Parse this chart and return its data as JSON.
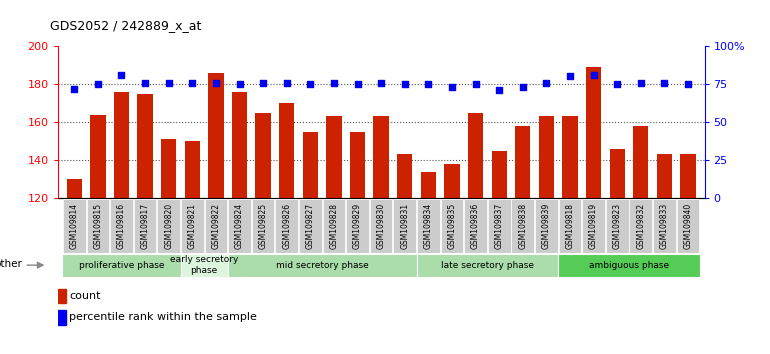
{
  "title": "GDS2052 / 242889_x_at",
  "samples": [
    "GSM109814",
    "GSM109815",
    "GSM109816",
    "GSM109817",
    "GSM109820",
    "GSM109821",
    "GSM109822",
    "GSM109824",
    "GSM109825",
    "GSM109826",
    "GSM109827",
    "GSM109828",
    "GSM109829",
    "GSM109830",
    "GSM109831",
    "GSM109834",
    "GSM109835",
    "GSM109836",
    "GSM109837",
    "GSM109838",
    "GSM109839",
    "GSM109818",
    "GSM109819",
    "GSM109823",
    "GSM109832",
    "GSM109833",
    "GSM109840"
  ],
  "counts": [
    130,
    164,
    176,
    175,
    151,
    150,
    186,
    176,
    165,
    170,
    155,
    163,
    155,
    163,
    143,
    134,
    138,
    165,
    145,
    158,
    163,
    163,
    189,
    146,
    158,
    143,
    143
  ],
  "percentiles": [
    72,
    75,
    81,
    76,
    76,
    76,
    76,
    75,
    76,
    76,
    75,
    76,
    75,
    76,
    75,
    75,
    73,
    75,
    71,
    73,
    76,
    80,
    81,
    75,
    76,
    76,
    75
  ],
  "ylim_left": [
    120,
    200
  ],
  "ylim_right": [
    0,
    100
  ],
  "yticks_left": [
    120,
    140,
    160,
    180,
    200
  ],
  "yticks_right": [
    0,
    25,
    50,
    75,
    100
  ],
  "ytick_labels_right": [
    "0",
    "25",
    "50",
    "75",
    "100%"
  ],
  "phases": [
    {
      "label": "proliferative phase",
      "start": 0,
      "end": 5,
      "color": "#aaddaa"
    },
    {
      "label": "early secretory\nphase",
      "start": 5,
      "end": 7,
      "color": "#ddf5dd"
    },
    {
      "label": "mid secretory phase",
      "start": 7,
      "end": 15,
      "color": "#aaddaa"
    },
    {
      "label": "late secretory phase",
      "start": 15,
      "end": 21,
      "color": "#aaddaa"
    },
    {
      "label": "ambiguous phase",
      "start": 21,
      "end": 27,
      "color": "#55cc55"
    }
  ],
  "bar_color": "#CC2200",
  "dot_color": "#0000EE",
  "bg_color": "#ffffff",
  "tick_bg_color": "#cccccc",
  "other_label": "other"
}
